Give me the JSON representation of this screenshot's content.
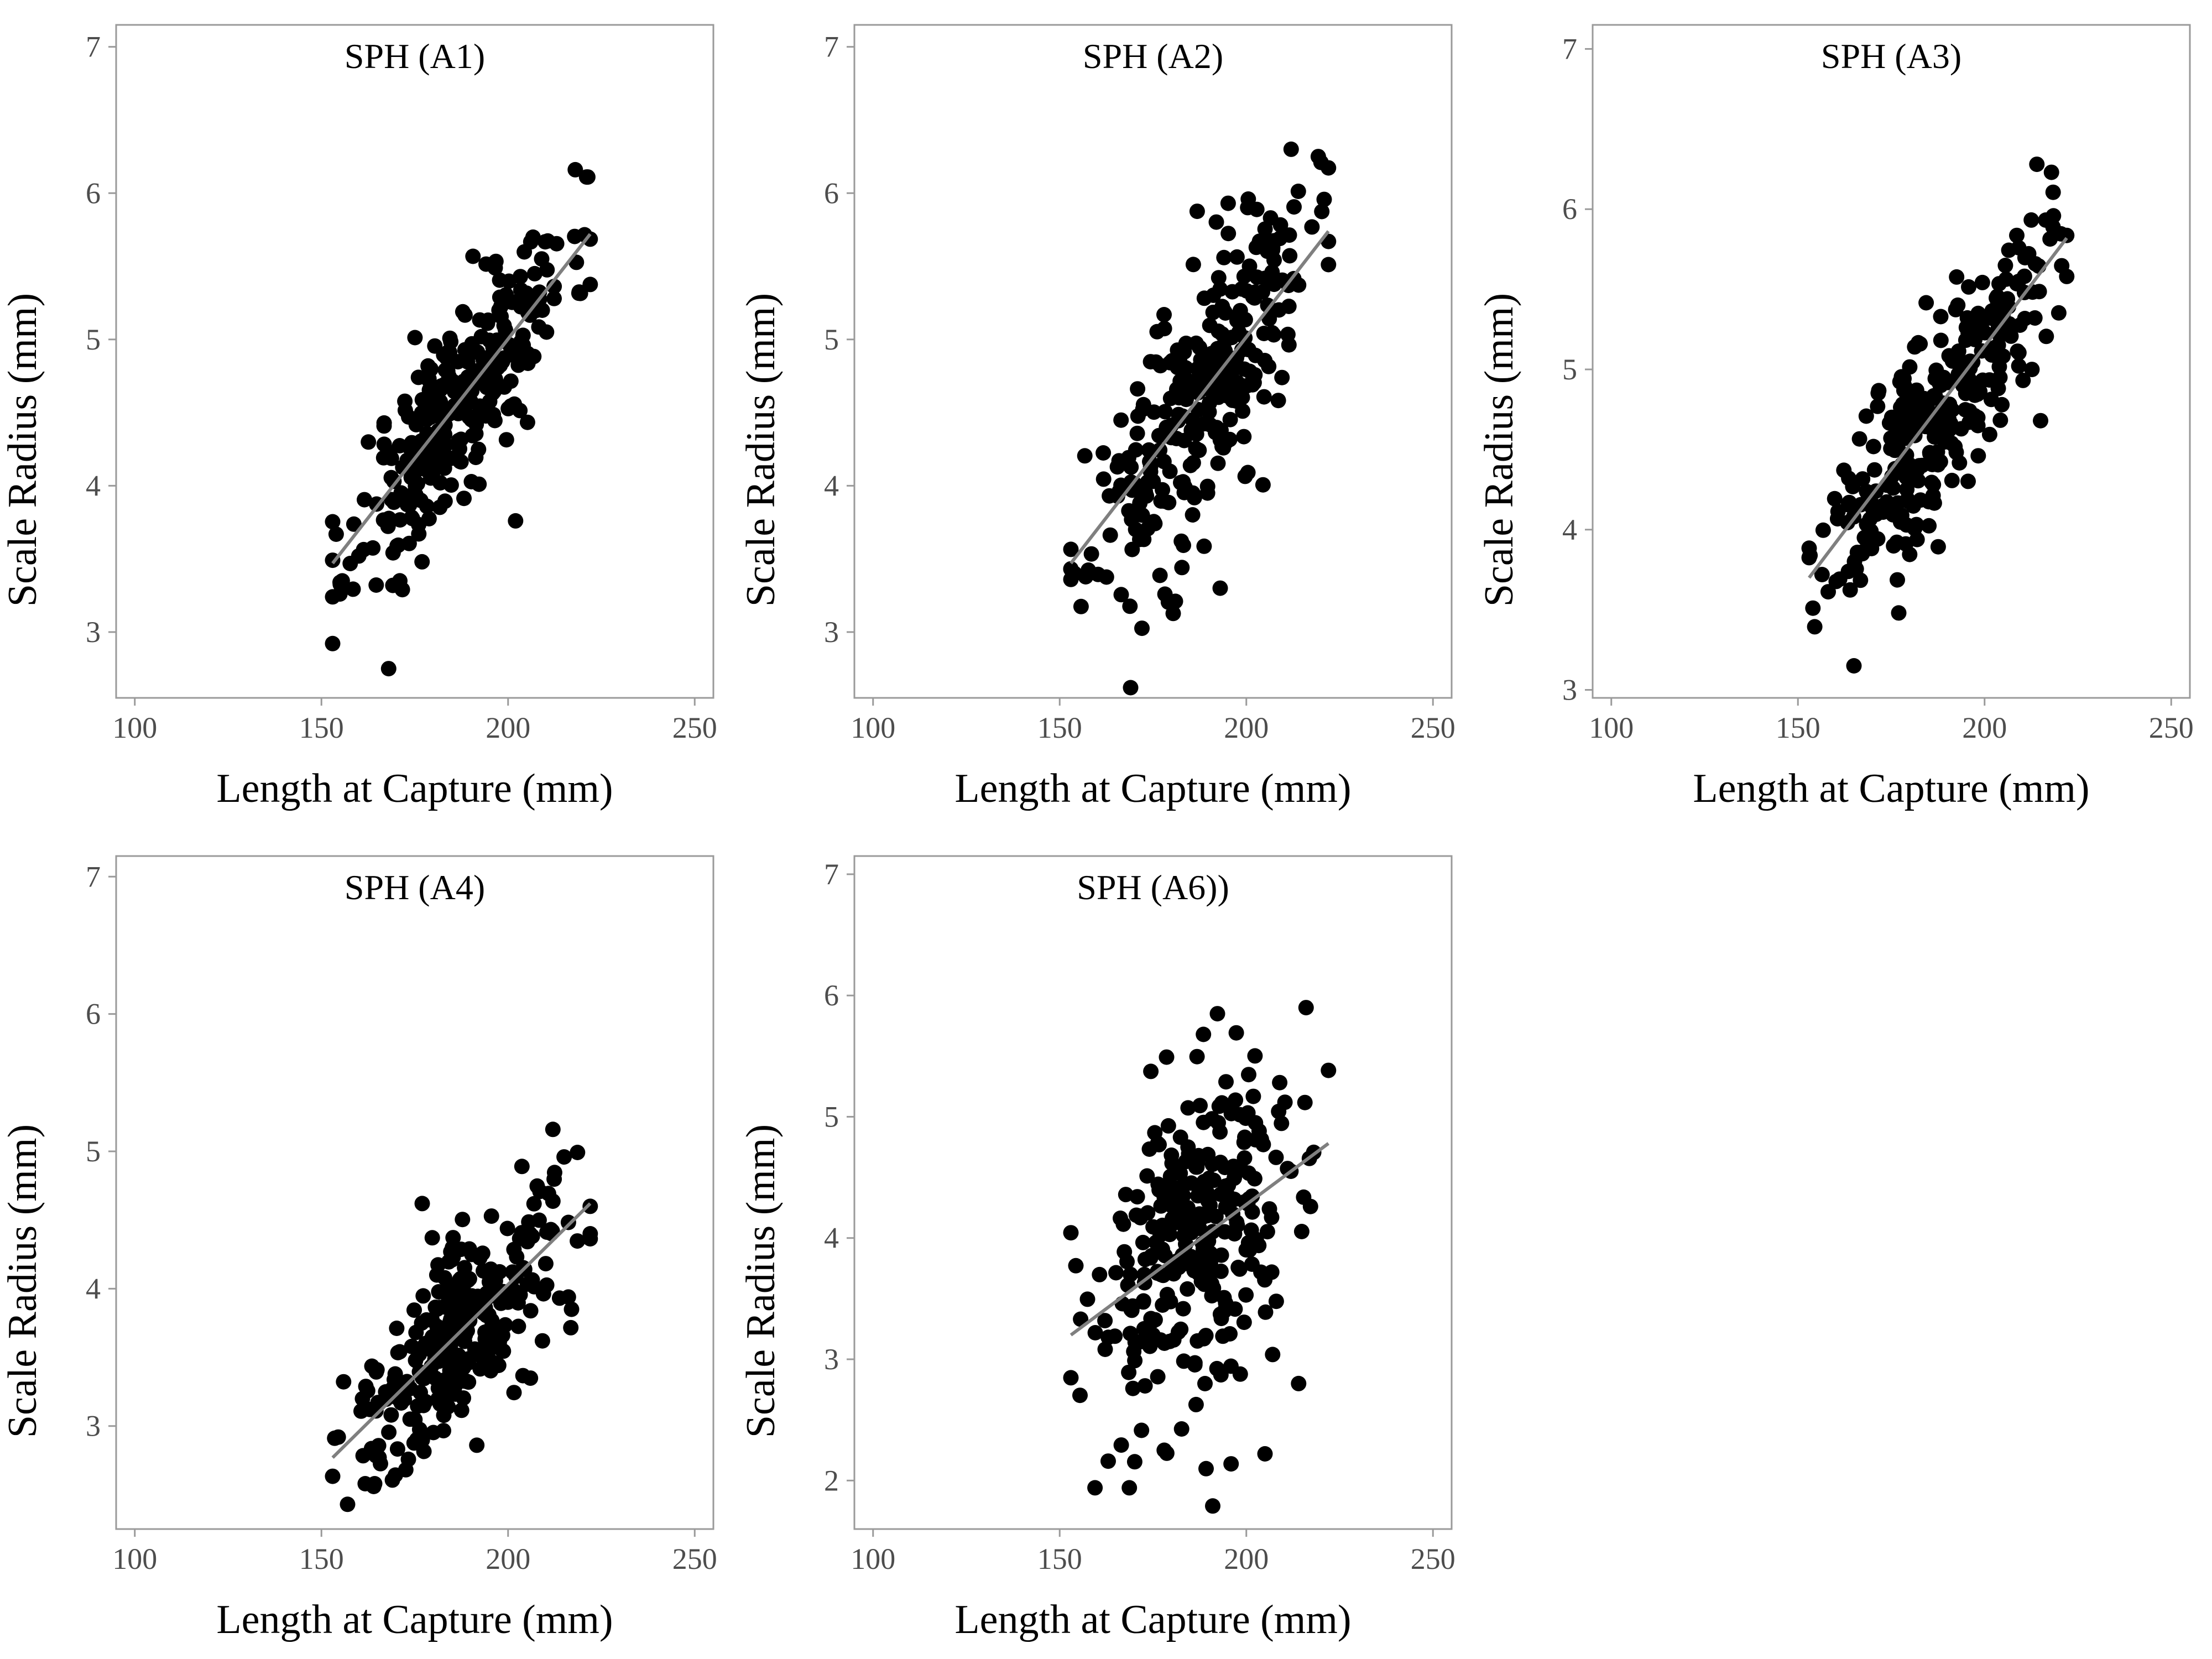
{
  "figure": {
    "point_color": "#000000",
    "fit_color": "#7f7f7f",
    "frame_color": "#9a9a9a"
  },
  "chart_data": [
    {
      "type": "scatter",
      "title": "SPH (A1)",
      "xlabel": "Length at Capture (mm)",
      "ylabel": "Scale Radius (mm)",
      "xlim": [
        95,
        255
      ],
      "ylim": [
        2.55,
        7.15
      ],
      "xticks": [
        100,
        150,
        200,
        250
      ],
      "yticks": [
        3,
        4,
        5,
        6,
        7
      ],
      "grid": false,
      "trend": {
        "x": [
          153,
          222
        ],
        "y": [
          3.47,
          5.72
        ]
      },
      "points": {
        "n": 300,
        "xmin": 153,
        "xmax": 222,
        "ymin": 2.75,
        "ymax": 6.16,
        "residual_sd": 0.32,
        "seed": 11
      },
      "outliers": [
        [
          168,
          2.75
        ],
        [
          155,
          3.34
        ],
        [
          218,
          6.16
        ],
        [
          171,
          3.35
        ],
        [
          202,
          3.76
        ],
        [
          160,
          3.52
        ]
      ]
    },
    {
      "type": "scatter",
      "title": "SPH (A2)",
      "xlabel": "Length at Capture (mm)",
      "ylabel": "Scale Radius (mm)",
      "xlim": [
        95,
        255
      ],
      "ylim": [
        2.55,
        7.15
      ],
      "xticks": [
        100,
        150,
        200,
        250
      ],
      "yticks": [
        3,
        4,
        5,
        6,
        7
      ],
      "grid": false,
      "trend": {
        "x": [
          153,
          222
        ],
        "y": [
          3.47,
          5.74
        ]
      },
      "points": {
        "n": 300,
        "xmin": 153,
        "xmax": 222,
        "ymin": 2.62,
        "ymax": 6.3,
        "residual_sd": 0.42,
        "seed": 23
      },
      "outliers": [
        [
          169,
          2.62
        ],
        [
          212,
          6.3
        ],
        [
          181,
          3.21
        ],
        [
          193,
          3.3
        ],
        [
          154,
          3.4
        ],
        [
          220,
          6.21
        ]
      ]
    },
    {
      "type": "scatter",
      "title": "SPH (A3)",
      "xlabel": "Length at Capture (mm)",
      "ylabel": "Scale Radius (mm)",
      "xlim": [
        95,
        255
      ],
      "ylim": [
        2.95,
        7.15
      ],
      "xticks": [
        100,
        150,
        200,
        250
      ],
      "yticks": [
        3,
        4,
        5,
        6,
        7
      ],
      "grid": false,
      "trend": {
        "x": [
          153,
          222
        ],
        "y": [
          3.7,
          5.82
        ]
      },
      "points": {
        "n": 300,
        "xmin": 153,
        "xmax": 222,
        "ymin": 3.15,
        "ymax": 6.28,
        "residual_sd": 0.31,
        "seed": 37
      },
      "outliers": [
        [
          165,
          3.15
        ],
        [
          214,
          6.28
        ],
        [
          154,
          3.51
        ],
        [
          177,
          3.48
        ],
        [
          215,
          4.68
        ],
        [
          222,
          5.58
        ]
      ]
    },
    {
      "type": "scatter",
      "title": "SPH (A4)",
      "xlabel": "Length at Capture (mm)",
      "ylabel": "Scale Radius (mm)",
      "xlim": [
        95,
        255
      ],
      "ylim": [
        2.25,
        7.15
      ],
      "xticks": [
        100,
        150,
        200,
        250
      ],
      "yticks": [
        3,
        4,
        5,
        6,
        7
      ],
      "grid": false,
      "trend": {
        "x": [
          153,
          222
        ],
        "y": [
          2.77,
          4.62
        ]
      },
      "points": {
        "n": 300,
        "xmin": 153,
        "xmax": 222,
        "ymin": 2.43,
        "ymax": 5.16,
        "residual_sd": 0.33,
        "seed": 41
      },
      "outliers": [
        [
          157,
          2.43
        ],
        [
          212,
          5.16
        ],
        [
          177,
          4.62
        ],
        [
          222,
          4.4
        ],
        [
          217,
          3.85
        ],
        [
          164,
          2.56
        ]
      ]
    },
    {
      "type": "scatter",
      "title": "SPH (A6))",
      "xlabel": "Length at Capture (mm)",
      "ylabel": "Scale Radius (mm)",
      "xlim": [
        95,
        255
      ],
      "ylim": [
        1.6,
        7.15
      ],
      "xticks": [
        100,
        150,
        200,
        250
      ],
      "yticks": [
        2,
        3,
        4,
        5,
        6,
        7
      ],
      "grid": false,
      "trend": {
        "x": [
          153,
          222
        ],
        "y": [
          3.2,
          4.78
        ]
      },
      "points": {
        "n": 300,
        "xmin": 153,
        "xmax": 222,
        "ymin": 1.79,
        "ymax": 5.9,
        "residual_sd": 0.68,
        "seed": 53
      },
      "outliers": [
        [
          191,
          1.79
        ],
        [
          216,
          5.9
        ],
        [
          163,
          2.16
        ],
        [
          205,
          2.22
        ],
        [
          178,
          2.25
        ],
        [
          214,
          2.8
        ]
      ]
    }
  ]
}
